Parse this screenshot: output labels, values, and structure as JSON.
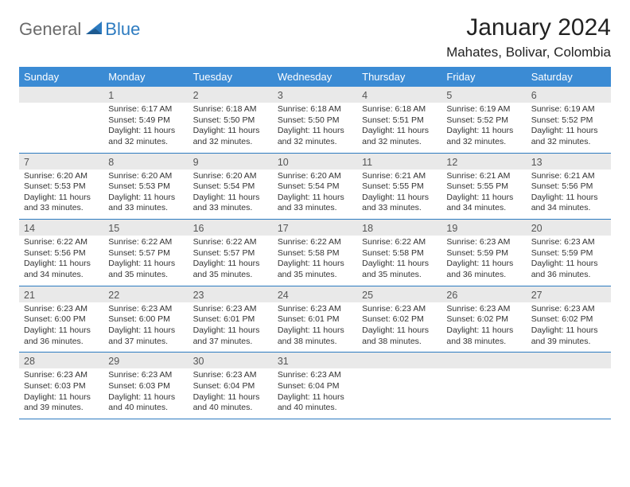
{
  "logo": {
    "text1": "General",
    "text2": "Blue"
  },
  "title": {
    "month": "January 2024",
    "location": "Mahates, Bolivar, Colombia"
  },
  "colors": {
    "header_bg": "#3b8bd4",
    "header_text": "#ffffff",
    "daynum_bg": "#e9e9e9",
    "border": "#2d7bc0",
    "logo_gray": "#6b6b6b",
    "logo_blue": "#2d7bc0"
  },
  "weekdays": [
    "Sunday",
    "Monday",
    "Tuesday",
    "Wednesday",
    "Thursday",
    "Friday",
    "Saturday"
  ],
  "weeks": [
    [
      {
        "day": "",
        "sunrise": "",
        "sunset": "",
        "daylight": ""
      },
      {
        "day": "1",
        "sunrise": "Sunrise: 6:17 AM",
        "sunset": "Sunset: 5:49 PM",
        "daylight": "Daylight: 11 hours and 32 minutes."
      },
      {
        "day": "2",
        "sunrise": "Sunrise: 6:18 AM",
        "sunset": "Sunset: 5:50 PM",
        "daylight": "Daylight: 11 hours and 32 minutes."
      },
      {
        "day": "3",
        "sunrise": "Sunrise: 6:18 AM",
        "sunset": "Sunset: 5:50 PM",
        "daylight": "Daylight: 11 hours and 32 minutes."
      },
      {
        "day": "4",
        "sunrise": "Sunrise: 6:18 AM",
        "sunset": "Sunset: 5:51 PM",
        "daylight": "Daylight: 11 hours and 32 minutes."
      },
      {
        "day": "5",
        "sunrise": "Sunrise: 6:19 AM",
        "sunset": "Sunset: 5:52 PM",
        "daylight": "Daylight: 11 hours and 32 minutes."
      },
      {
        "day": "6",
        "sunrise": "Sunrise: 6:19 AM",
        "sunset": "Sunset: 5:52 PM",
        "daylight": "Daylight: 11 hours and 32 minutes."
      }
    ],
    [
      {
        "day": "7",
        "sunrise": "Sunrise: 6:20 AM",
        "sunset": "Sunset: 5:53 PM",
        "daylight": "Daylight: 11 hours and 33 minutes."
      },
      {
        "day": "8",
        "sunrise": "Sunrise: 6:20 AM",
        "sunset": "Sunset: 5:53 PM",
        "daylight": "Daylight: 11 hours and 33 minutes."
      },
      {
        "day": "9",
        "sunrise": "Sunrise: 6:20 AM",
        "sunset": "Sunset: 5:54 PM",
        "daylight": "Daylight: 11 hours and 33 minutes."
      },
      {
        "day": "10",
        "sunrise": "Sunrise: 6:20 AM",
        "sunset": "Sunset: 5:54 PM",
        "daylight": "Daylight: 11 hours and 33 minutes."
      },
      {
        "day": "11",
        "sunrise": "Sunrise: 6:21 AM",
        "sunset": "Sunset: 5:55 PM",
        "daylight": "Daylight: 11 hours and 33 minutes."
      },
      {
        "day": "12",
        "sunrise": "Sunrise: 6:21 AM",
        "sunset": "Sunset: 5:55 PM",
        "daylight": "Daylight: 11 hours and 34 minutes."
      },
      {
        "day": "13",
        "sunrise": "Sunrise: 6:21 AM",
        "sunset": "Sunset: 5:56 PM",
        "daylight": "Daylight: 11 hours and 34 minutes."
      }
    ],
    [
      {
        "day": "14",
        "sunrise": "Sunrise: 6:22 AM",
        "sunset": "Sunset: 5:56 PM",
        "daylight": "Daylight: 11 hours and 34 minutes."
      },
      {
        "day": "15",
        "sunrise": "Sunrise: 6:22 AM",
        "sunset": "Sunset: 5:57 PM",
        "daylight": "Daylight: 11 hours and 35 minutes."
      },
      {
        "day": "16",
        "sunrise": "Sunrise: 6:22 AM",
        "sunset": "Sunset: 5:57 PM",
        "daylight": "Daylight: 11 hours and 35 minutes."
      },
      {
        "day": "17",
        "sunrise": "Sunrise: 6:22 AM",
        "sunset": "Sunset: 5:58 PM",
        "daylight": "Daylight: 11 hours and 35 minutes."
      },
      {
        "day": "18",
        "sunrise": "Sunrise: 6:22 AM",
        "sunset": "Sunset: 5:58 PM",
        "daylight": "Daylight: 11 hours and 35 minutes."
      },
      {
        "day": "19",
        "sunrise": "Sunrise: 6:23 AM",
        "sunset": "Sunset: 5:59 PM",
        "daylight": "Daylight: 11 hours and 36 minutes."
      },
      {
        "day": "20",
        "sunrise": "Sunrise: 6:23 AM",
        "sunset": "Sunset: 5:59 PM",
        "daylight": "Daylight: 11 hours and 36 minutes."
      }
    ],
    [
      {
        "day": "21",
        "sunrise": "Sunrise: 6:23 AM",
        "sunset": "Sunset: 6:00 PM",
        "daylight": "Daylight: 11 hours and 36 minutes."
      },
      {
        "day": "22",
        "sunrise": "Sunrise: 6:23 AM",
        "sunset": "Sunset: 6:00 PM",
        "daylight": "Daylight: 11 hours and 37 minutes."
      },
      {
        "day": "23",
        "sunrise": "Sunrise: 6:23 AM",
        "sunset": "Sunset: 6:01 PM",
        "daylight": "Daylight: 11 hours and 37 minutes."
      },
      {
        "day": "24",
        "sunrise": "Sunrise: 6:23 AM",
        "sunset": "Sunset: 6:01 PM",
        "daylight": "Daylight: 11 hours and 38 minutes."
      },
      {
        "day": "25",
        "sunrise": "Sunrise: 6:23 AM",
        "sunset": "Sunset: 6:02 PM",
        "daylight": "Daylight: 11 hours and 38 minutes."
      },
      {
        "day": "26",
        "sunrise": "Sunrise: 6:23 AM",
        "sunset": "Sunset: 6:02 PM",
        "daylight": "Daylight: 11 hours and 38 minutes."
      },
      {
        "day": "27",
        "sunrise": "Sunrise: 6:23 AM",
        "sunset": "Sunset: 6:02 PM",
        "daylight": "Daylight: 11 hours and 39 minutes."
      }
    ],
    [
      {
        "day": "28",
        "sunrise": "Sunrise: 6:23 AM",
        "sunset": "Sunset: 6:03 PM",
        "daylight": "Daylight: 11 hours and 39 minutes."
      },
      {
        "day": "29",
        "sunrise": "Sunrise: 6:23 AM",
        "sunset": "Sunset: 6:03 PM",
        "daylight": "Daylight: 11 hours and 40 minutes."
      },
      {
        "day": "30",
        "sunrise": "Sunrise: 6:23 AM",
        "sunset": "Sunset: 6:04 PM",
        "daylight": "Daylight: 11 hours and 40 minutes."
      },
      {
        "day": "31",
        "sunrise": "Sunrise: 6:23 AM",
        "sunset": "Sunset: 6:04 PM",
        "daylight": "Daylight: 11 hours and 40 minutes."
      },
      {
        "day": "",
        "sunrise": "",
        "sunset": "",
        "daylight": ""
      },
      {
        "day": "",
        "sunrise": "",
        "sunset": "",
        "daylight": ""
      },
      {
        "day": "",
        "sunrise": "",
        "sunset": "",
        "daylight": ""
      }
    ]
  ]
}
